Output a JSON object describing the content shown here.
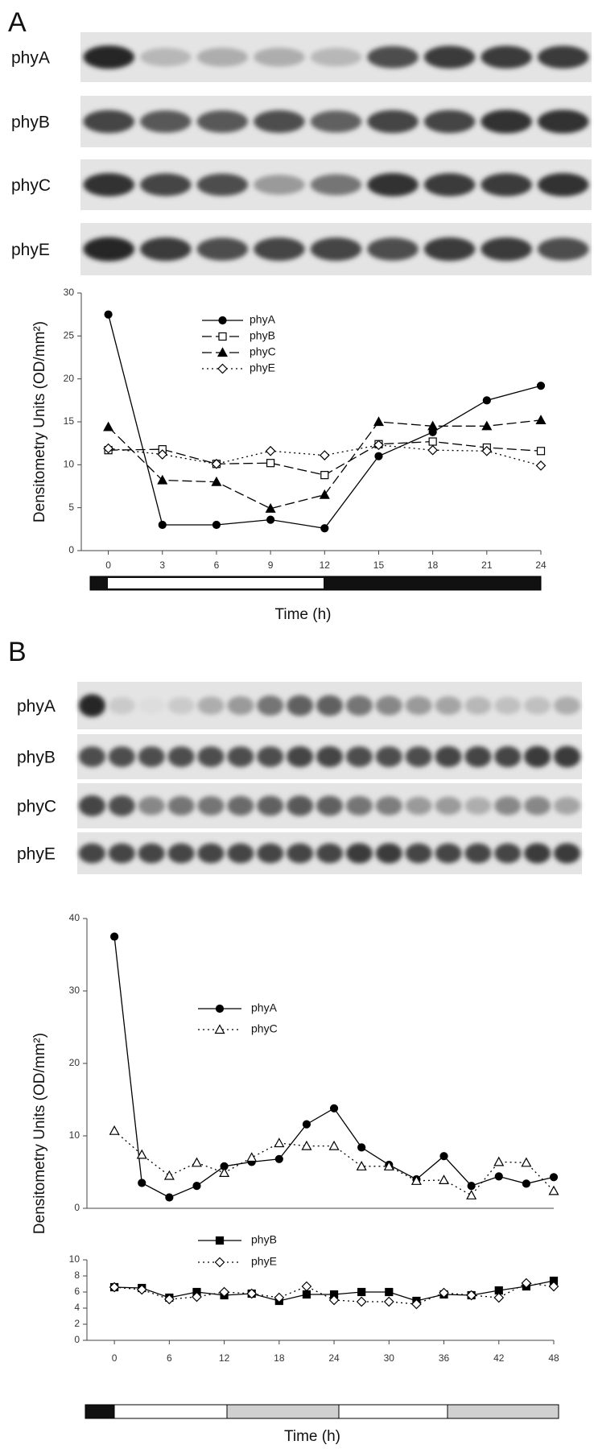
{
  "panels": [
    {
      "label": "A",
      "blots": [
        "phyA",
        "phyB",
        "phyC",
        "phyE"
      ]
    },
    {
      "label": "B",
      "blots": [
        "phyA",
        "phyB",
        "phyC",
        "phyE"
      ]
    }
  ],
  "chart_data": [
    {
      "type": "line",
      "ylabel": "Densitometry Units (OD/mm²)",
      "xlabel": "Time (h)",
      "x": [
        0,
        3,
        6,
        9,
        12,
        15,
        18,
        21,
        24
      ],
      "xlim": [
        -1.5,
        24
      ],
      "xticks": [
        0,
        3,
        6,
        9,
        12,
        15,
        18,
        21,
        24
      ],
      "ylim": [
        0,
        30
      ],
      "yticks": [
        0,
        5,
        10,
        15,
        20,
        25,
        30
      ],
      "series": [
        {
          "name": "phyA",
          "color": "#000000",
          "marker": "circle",
          "fill": "filled",
          "dash": "solid",
          "values": [
            27.5,
            3.0,
            3.0,
            3.6,
            2.6,
            11.0,
            13.8,
            17.5,
            19.2
          ]
        },
        {
          "name": "phyB",
          "color": "#000000",
          "marker": "square",
          "fill": "open",
          "dash": "dashed",
          "values": [
            11.7,
            11.8,
            10.1,
            10.2,
            8.8,
            12.4,
            12.7,
            12.0,
            11.6
          ]
        },
        {
          "name": "phyC",
          "color": "#000000",
          "marker": "triangle",
          "fill": "filled",
          "dash": "dashed",
          "values": [
            14.4,
            8.2,
            8.0,
            4.9,
            6.5,
            15.0,
            14.5,
            14.5,
            15.2
          ]
        },
        {
          "name": "phyE",
          "color": "#000000",
          "marker": "diamond",
          "fill": "open",
          "dash": "dotted",
          "values": [
            11.9,
            11.2,
            10.1,
            11.6,
            11.1,
            12.3,
            11.7,
            11.6,
            9.9
          ]
        }
      ]
    },
    {
      "type": "line",
      "ylabel": "Densitometry Units (OD/mm²)",
      "x": [
        0,
        3,
        6,
        9,
        12,
        15,
        18,
        21,
        24,
        27,
        30,
        33,
        36,
        39,
        42,
        45,
        48
      ],
      "xlim": [
        -3,
        48
      ],
      "ylim": [
        0,
        40
      ],
      "yticks": [
        0,
        10,
        20,
        30,
        40
      ],
      "series": [
        {
          "name": "phyA",
          "color": "#000000",
          "marker": "circle",
          "fill": "filled",
          "dash": "solid",
          "values": [
            37.5,
            3.5,
            1.5,
            3.1,
            5.8,
            6.4,
            6.8,
            11.6,
            13.8,
            8.4,
            6.0,
            4.0,
            7.2,
            3.1,
            4.4,
            3.4,
            4.3
          ]
        },
        {
          "name": "phyC",
          "color": "#000000",
          "marker": "triangle",
          "fill": "open",
          "dash": "dotted",
          "values": [
            10.7,
            7.4,
            4.5,
            6.3,
            4.9,
            7.0,
            9.0,
            8.6,
            8.6,
            5.8,
            5.8,
            3.8,
            3.9,
            1.8,
            6.4,
            6.3,
            2.4
          ]
        }
      ]
    },
    {
      "type": "line",
      "xlabel": "Time (h)",
      "x": [
        0,
        3,
        6,
        9,
        12,
        15,
        18,
        21,
        24,
        27,
        30,
        33,
        36,
        39,
        42,
        45,
        48
      ],
      "xlim": [
        -3,
        48
      ],
      "xticks": [
        0,
        6,
        12,
        18,
        24,
        30,
        36,
        42,
        48
      ],
      "ylim": [
        0,
        10
      ],
      "yticks": [
        0,
        2,
        4,
        6,
        8,
        10
      ],
      "series": [
        {
          "name": "phyB",
          "color": "#000000",
          "marker": "square",
          "fill": "filled",
          "dash": "solid",
          "values": [
            6.6,
            6.5,
            5.3,
            6.0,
            5.6,
            5.8,
            4.9,
            5.7,
            5.7,
            6.0,
            6.0,
            4.9,
            5.7,
            5.6,
            6.2,
            6.7,
            7.4
          ]
        },
        {
          "name": "phyE",
          "color": "#000000",
          "marker": "diamond",
          "fill": "open",
          "dash": "dotted",
          "values": [
            6.6,
            6.3,
            5.1,
            5.4,
            6.0,
            5.8,
            5.3,
            6.7,
            5.0,
            4.8,
            4.8,
            4.5,
            5.9,
            5.6,
            5.3,
            7.1,
            6.7
          ]
        }
      ]
    }
  ]
}
